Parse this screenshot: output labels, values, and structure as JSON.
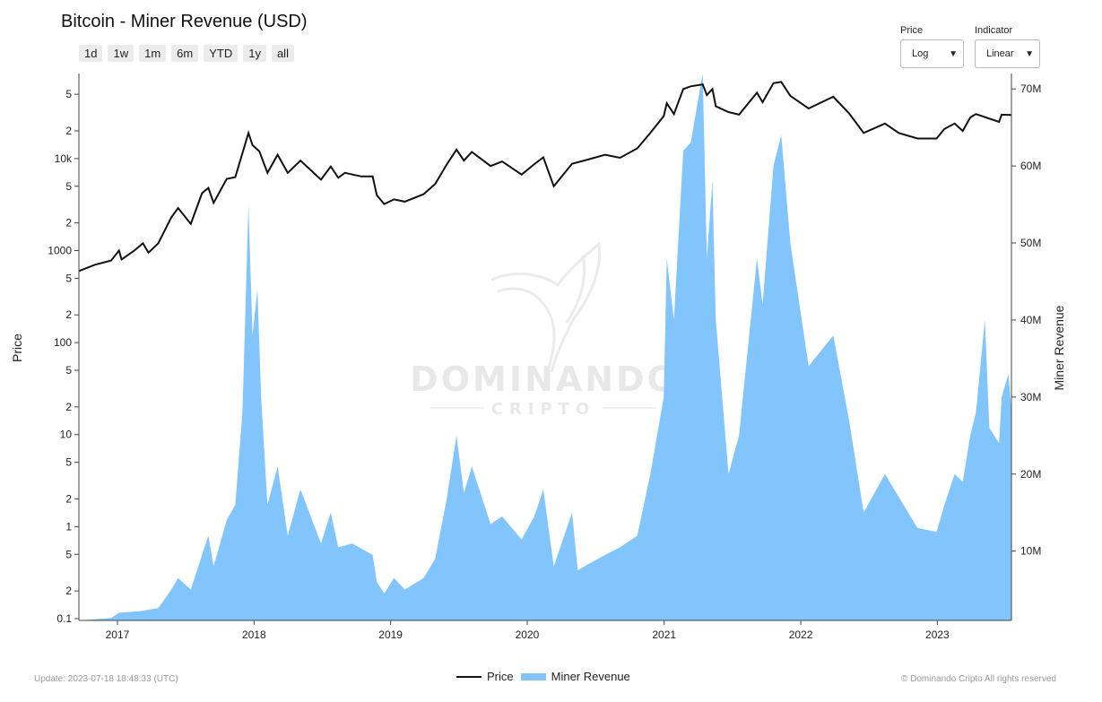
{
  "title": "Bitcoin - Miner Revenue (USD)",
  "range_buttons": [
    "1d",
    "1w",
    "1m",
    "6m",
    "YTD",
    "1y",
    "all"
  ],
  "price_scale": {
    "label": "Price",
    "value": "Log"
  },
  "indicator_scale": {
    "label": "Indicator",
    "value": "Linear"
  },
  "watermark": {
    "line1": "DOMINANDO",
    "line2": "CRIPTO"
  },
  "footer": {
    "update": "Update: 2023-07-18 18:48:33 (UTC)",
    "copyright": "© Dominando Cripto All rights reserved"
  },
  "legend": {
    "price": "Price",
    "revenue": "Miner Revenue"
  },
  "colors": {
    "price": "#111111",
    "revenue": "#82c4fc"
  },
  "chart_data": {
    "type": "line",
    "x_type": "date",
    "xlim": [
      "2016-09-20",
      "2023-07-18"
    ],
    "x_ticks": [
      "2017",
      "2018",
      "2019",
      "2020",
      "2021",
      "2022",
      "2023"
    ],
    "y_left": {
      "label": "Price",
      "scale": "log",
      "lim": [
        0.1,
        60000
      ],
      "ticks": [
        {
          "v": 0.1,
          "t": "0.1"
        },
        {
          "v": 0.2,
          "t": "2"
        },
        {
          "v": 0.5,
          "t": "5"
        },
        {
          "v": 1,
          "t": "1"
        },
        {
          "v": 2,
          "t": "2"
        },
        {
          "v": 5,
          "t": "5"
        },
        {
          "v": 10,
          "t": "10"
        },
        {
          "v": 20,
          "t": "2"
        },
        {
          "v": 50,
          "t": "5"
        },
        {
          "v": 100,
          "t": "100"
        },
        {
          "v": 200,
          "t": "2"
        },
        {
          "v": 500,
          "t": "5"
        },
        {
          "v": 1000,
          "t": "1000"
        },
        {
          "v": 2000,
          "t": "2"
        },
        {
          "v": 5000,
          "t": "5"
        },
        {
          "v": 10000,
          "t": "10k"
        },
        {
          "v": 20000,
          "t": "2"
        },
        {
          "v": 50000,
          "t": "5"
        }
      ]
    },
    "y_right": {
      "label": "Miner Revenue",
      "scale": "linear",
      "lim": [
        1000000,
        72000000
      ],
      "ticks": [
        {
          "v": 10000000,
          "t": "10M"
        },
        {
          "v": 20000000,
          "t": "20M"
        },
        {
          "v": 30000000,
          "t": "30M"
        },
        {
          "v": 40000000,
          "t": "40M"
        },
        {
          "v": 50000000,
          "t": "50M"
        },
        {
          "v": 60000000,
          "t": "60M"
        },
        {
          "v": 70000000,
          "t": "70M"
        }
      ]
    },
    "series": [
      {
        "name": "Price",
        "type": "line",
        "axis": "left",
        "points": [
          [
            "2016-09-20",
            600
          ],
          [
            "2016-11-01",
            700
          ],
          [
            "2016-12-15",
            780
          ],
          [
            "2017-01-05",
            1000
          ],
          [
            "2017-01-12",
            800
          ],
          [
            "2017-02-15",
            1000
          ],
          [
            "2017-03-10",
            1200
          ],
          [
            "2017-03-25",
            950
          ],
          [
            "2017-04-20",
            1200
          ],
          [
            "2017-05-25",
            2300
          ],
          [
            "2017-06-12",
            2900
          ],
          [
            "2017-07-16",
            1950
          ],
          [
            "2017-08-15",
            4200
          ],
          [
            "2017-09-01",
            4800
          ],
          [
            "2017-09-15",
            3300
          ],
          [
            "2017-10-20",
            6000
          ],
          [
            "2017-11-12",
            6300
          ],
          [
            "2017-12-17",
            19000
          ],
          [
            "2017-12-28",
            14000
          ],
          [
            "2018-01-15",
            12000
          ],
          [
            "2018-02-06",
            7000
          ],
          [
            "2018-03-05",
            11000
          ],
          [
            "2018-04-01",
            7000
          ],
          [
            "2018-05-05",
            9500
          ],
          [
            "2018-06-29",
            5900
          ],
          [
            "2018-07-25",
            8200
          ],
          [
            "2018-08-14",
            6200
          ],
          [
            "2018-09-01",
            7000
          ],
          [
            "2018-10-15",
            6400
          ],
          [
            "2018-11-14",
            6400
          ],
          [
            "2018-11-25",
            4000
          ],
          [
            "2018-12-15",
            3200
          ],
          [
            "2019-01-10",
            3600
          ],
          [
            "2019-02-08",
            3400
          ],
          [
            "2019-03-30",
            4100
          ],
          [
            "2019-04-30",
            5300
          ],
          [
            "2019-05-30",
            8500
          ],
          [
            "2019-06-26",
            12500
          ],
          [
            "2019-07-16",
            9500
          ],
          [
            "2019-08-06",
            11800
          ],
          [
            "2019-09-25",
            8300
          ],
          [
            "2019-10-26",
            9300
          ],
          [
            "2019-12-17",
            6700
          ],
          [
            "2020-01-20",
            8700
          ],
          [
            "2020-02-13",
            10300
          ],
          [
            "2020-03-12",
            5000
          ],
          [
            "2020-04-30",
            8800
          ],
          [
            "2020-06-01",
            9500
          ],
          [
            "2020-07-27",
            11000
          ],
          [
            "2020-09-05",
            10200
          ],
          [
            "2020-10-21",
            12900
          ],
          [
            "2020-11-25",
            19000
          ],
          [
            "2020-12-31",
            29000
          ],
          [
            "2021-01-08",
            40000
          ],
          [
            "2021-01-27",
            30500
          ],
          [
            "2021-02-21",
            57000
          ],
          [
            "2021-03-13",
            61000
          ],
          [
            "2021-04-14",
            64000
          ],
          [
            "2021-04-25",
            49000
          ],
          [
            "2021-05-10",
            57000
          ],
          [
            "2021-05-19",
            37000
          ],
          [
            "2021-06-22",
            32000
          ],
          [
            "2021-07-20",
            30000
          ],
          [
            "2021-09-06",
            52000
          ],
          [
            "2021-09-21",
            41000
          ],
          [
            "2021-10-20",
            66000
          ],
          [
            "2021-11-10",
            68000
          ],
          [
            "2021-12-04",
            48000
          ],
          [
            "2022-01-22",
            35000
          ],
          [
            "2022-03-29",
            47000
          ],
          [
            "2022-05-10",
            31000
          ],
          [
            "2022-06-18",
            19000
          ],
          [
            "2022-08-14",
            24000
          ],
          [
            "2022-09-20",
            19000
          ],
          [
            "2022-11-09",
            16500
          ],
          [
            "2022-12-30",
            16500
          ],
          [
            "2023-01-20",
            21000
          ],
          [
            "2023-02-16",
            24000
          ],
          [
            "2023-03-10",
            20000
          ],
          [
            "2023-03-30",
            28000
          ],
          [
            "2023-04-14",
            30500
          ],
          [
            "2023-06-15",
            25000
          ],
          [
            "2023-06-22",
            30000
          ],
          [
            "2023-07-18",
            29800
          ]
        ]
      },
      {
        "name": "Miner Revenue",
        "type": "area",
        "axis": "right",
        "points": [
          [
            "2016-09-20",
            1000000
          ],
          [
            "2016-12-15",
            1300000
          ],
          [
            "2017-01-05",
            2000000
          ],
          [
            "2017-03-01",
            2200000
          ],
          [
            "2017-04-20",
            2600000
          ],
          [
            "2017-05-25",
            5000000
          ],
          [
            "2017-06-12",
            6500000
          ],
          [
            "2017-07-16",
            5000000
          ],
          [
            "2017-08-15",
            9500000
          ],
          [
            "2017-09-01",
            12000000
          ],
          [
            "2017-09-15",
            8000000
          ],
          [
            "2017-10-20",
            14000000
          ],
          [
            "2017-11-12",
            16000000
          ],
          [
            "2017-12-01",
            28000000
          ],
          [
            "2017-12-17",
            55000000
          ],
          [
            "2017-12-28",
            38000000
          ],
          [
            "2018-01-10",
            44000000
          ],
          [
            "2018-01-20",
            30000000
          ],
          [
            "2018-02-06",
            16000000
          ],
          [
            "2018-03-05",
            21000000
          ],
          [
            "2018-04-01",
            12000000
          ],
          [
            "2018-05-05",
            18000000
          ],
          [
            "2018-06-29",
            11000000
          ],
          [
            "2018-07-25",
            15000000
          ],
          [
            "2018-08-14",
            10500000
          ],
          [
            "2018-09-20",
            11000000
          ],
          [
            "2018-11-14",
            9500000
          ],
          [
            "2018-11-25",
            6000000
          ],
          [
            "2018-12-15",
            4500000
          ],
          [
            "2019-01-10",
            6500000
          ],
          [
            "2019-02-08",
            5000000
          ],
          [
            "2019-03-30",
            6500000
          ],
          [
            "2019-04-30",
            9000000
          ],
          [
            "2019-05-30",
            16500000
          ],
          [
            "2019-06-26",
            25000000
          ],
          [
            "2019-07-16",
            17500000
          ],
          [
            "2019-08-06",
            21000000
          ],
          [
            "2019-09-25",
            13500000
          ],
          [
            "2019-10-26",
            14500000
          ],
          [
            "2019-12-17",
            11500000
          ],
          [
            "2020-01-20",
            14500000
          ],
          [
            "2020-02-13",
            18000000
          ],
          [
            "2020-03-12",
            8000000
          ],
          [
            "2020-04-30",
            15000000
          ],
          [
            "2020-05-15",
            7500000
          ],
          [
            "2020-06-01",
            8000000
          ],
          [
            "2020-07-27",
            9500000
          ],
          [
            "2020-09-05",
            10500000
          ],
          [
            "2020-10-21",
            12000000
          ],
          [
            "2020-11-25",
            20000000
          ],
          [
            "2020-12-31",
            30000000
          ],
          [
            "2021-01-08",
            48000000
          ],
          [
            "2021-01-27",
            40000000
          ],
          [
            "2021-02-21",
            62000000
          ],
          [
            "2021-03-13",
            63000000
          ],
          [
            "2021-04-14",
            72000000
          ],
          [
            "2021-04-25",
            48000000
          ],
          [
            "2021-05-10",
            58000000
          ],
          [
            "2021-05-19",
            40000000
          ],
          [
            "2021-06-22",
            20000000
          ],
          [
            "2021-07-20",
            25000000
          ],
          [
            "2021-09-06",
            48000000
          ],
          [
            "2021-09-21",
            42000000
          ],
          [
            "2021-10-20",
            60000000
          ],
          [
            "2021-11-10",
            64000000
          ],
          [
            "2021-12-04",
            50000000
          ],
          [
            "2022-01-22",
            34000000
          ],
          [
            "2022-03-29",
            38000000
          ],
          [
            "2022-05-10",
            27000000
          ],
          [
            "2022-06-18",
            15000000
          ],
          [
            "2022-08-14",
            20000000
          ],
          [
            "2022-09-20",
            17000000
          ],
          [
            "2022-11-09",
            13000000
          ],
          [
            "2022-12-30",
            12500000
          ],
          [
            "2023-01-20",
            16000000
          ],
          [
            "2023-02-16",
            20000000
          ],
          [
            "2023-03-10",
            19000000
          ],
          [
            "2023-03-30",
            25000000
          ],
          [
            "2023-04-14",
            28000000
          ],
          [
            "2023-05-08",
            40000000
          ],
          [
            "2023-05-20",
            26000000
          ],
          [
            "2023-06-15",
            24000000
          ],
          [
            "2023-06-22",
            30000000
          ],
          [
            "2023-07-10",
            33000000
          ],
          [
            "2023-07-18",
            28000000
          ]
        ]
      }
    ]
  }
}
